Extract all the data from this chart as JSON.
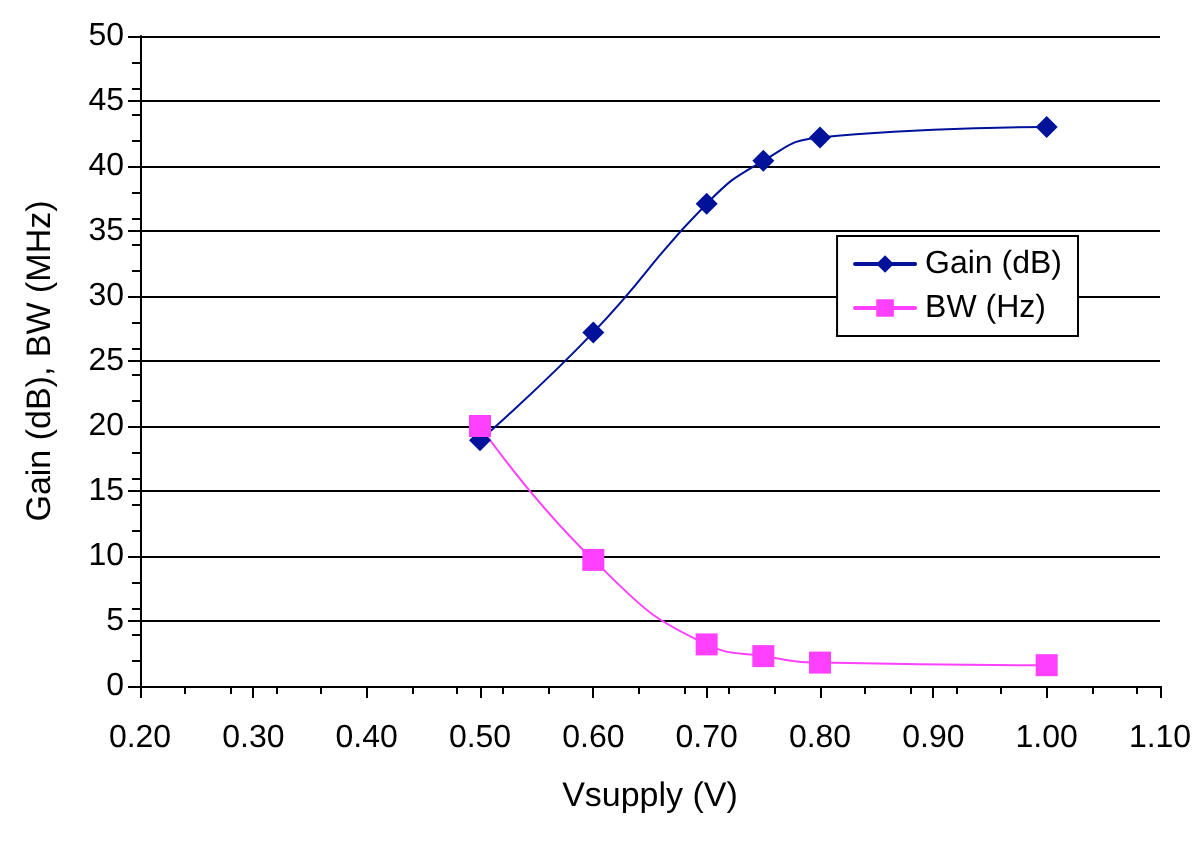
{
  "chart_data": {
    "type": "line",
    "xlabel": "Vsupply (V)",
    "ylabel": "Gain (dB), BW (MHz)",
    "x": [
      0.5,
      0.6,
      0.7,
      0.75,
      0.8,
      1.0
    ],
    "series": [
      {
        "name": "Gain (dB)",
        "color": "#00129a",
        "marker": "diamond",
        "values": [
          18.9,
          27.2,
          37.1,
          40.4,
          42.2,
          43.0
        ]
      },
      {
        "name": "BW (Hz)",
        "color": "#ff40ff",
        "marker": "square",
        "values": [
          20.0,
          9.7,
          3.2,
          2.3,
          1.8,
          1.6
        ]
      }
    ],
    "xlim": [
      0.2,
      1.1
    ],
    "xticks": [
      {
        "value": 0.2,
        "label": "0.20"
      },
      {
        "value": 0.3,
        "label": "0.30"
      },
      {
        "value": 0.4,
        "label": "0.40"
      },
      {
        "value": 0.5,
        "label": "0.50"
      },
      {
        "value": 0.6,
        "label": "0.60"
      },
      {
        "value": 0.7,
        "label": "0.70"
      },
      {
        "value": 0.8,
        "label": "0.80"
      },
      {
        "value": 0.9,
        "label": "0.90"
      },
      {
        "value": 1.0,
        "label": "1.00"
      },
      {
        "value": 1.1,
        "label": "1.10"
      }
    ],
    "ylim": [
      0,
      50
    ],
    "yticks": [
      0,
      5,
      10,
      15,
      20,
      25,
      30,
      35,
      40,
      45,
      50
    ],
    "grid": "y",
    "legend": "right",
    "line_style": "solid"
  }
}
